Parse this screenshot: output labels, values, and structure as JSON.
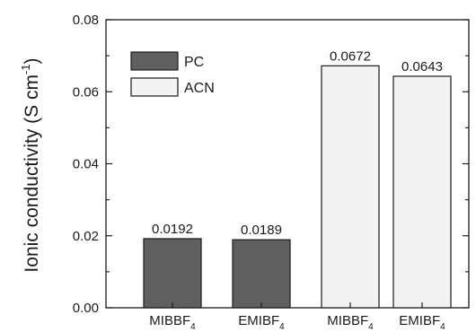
{
  "chart_data": {
    "type": "bar",
    "categories": [
      {
        "base": "MIBBF",
        "sub": "4"
      },
      {
        "base": "EMIBF",
        "sub": "4"
      },
      {
        "base": "MIBBF",
        "sub": "4"
      },
      {
        "base": "EMIBF",
        "sub": "4"
      }
    ],
    "values": [
      0.0192,
      0.0189,
      0.0672,
      0.0643
    ],
    "data_labels": [
      "0.0192",
      "0.0189",
      "0.0672",
      "0.0643"
    ],
    "bar_series": [
      "PC",
      "PC",
      "ACN",
      "ACN"
    ],
    "series": [
      {
        "name": "PC",
        "color": "#5f5f5f"
      },
      {
        "name": "ACN",
        "color": "#f2f2f2"
      }
    ],
    "ylabel": {
      "main": "Ionic conductivity (S cm",
      "sup": "-1",
      "close": ")"
    },
    "ylim": [
      0,
      0.08
    ],
    "yticks": [
      "0.00",
      "0.02",
      "0.04",
      "0.06",
      "0.08"
    ],
    "ytick_values": [
      0,
      0.02,
      0.04,
      0.06,
      0.08
    ],
    "grid": false,
    "legend_position": "top-left"
  }
}
